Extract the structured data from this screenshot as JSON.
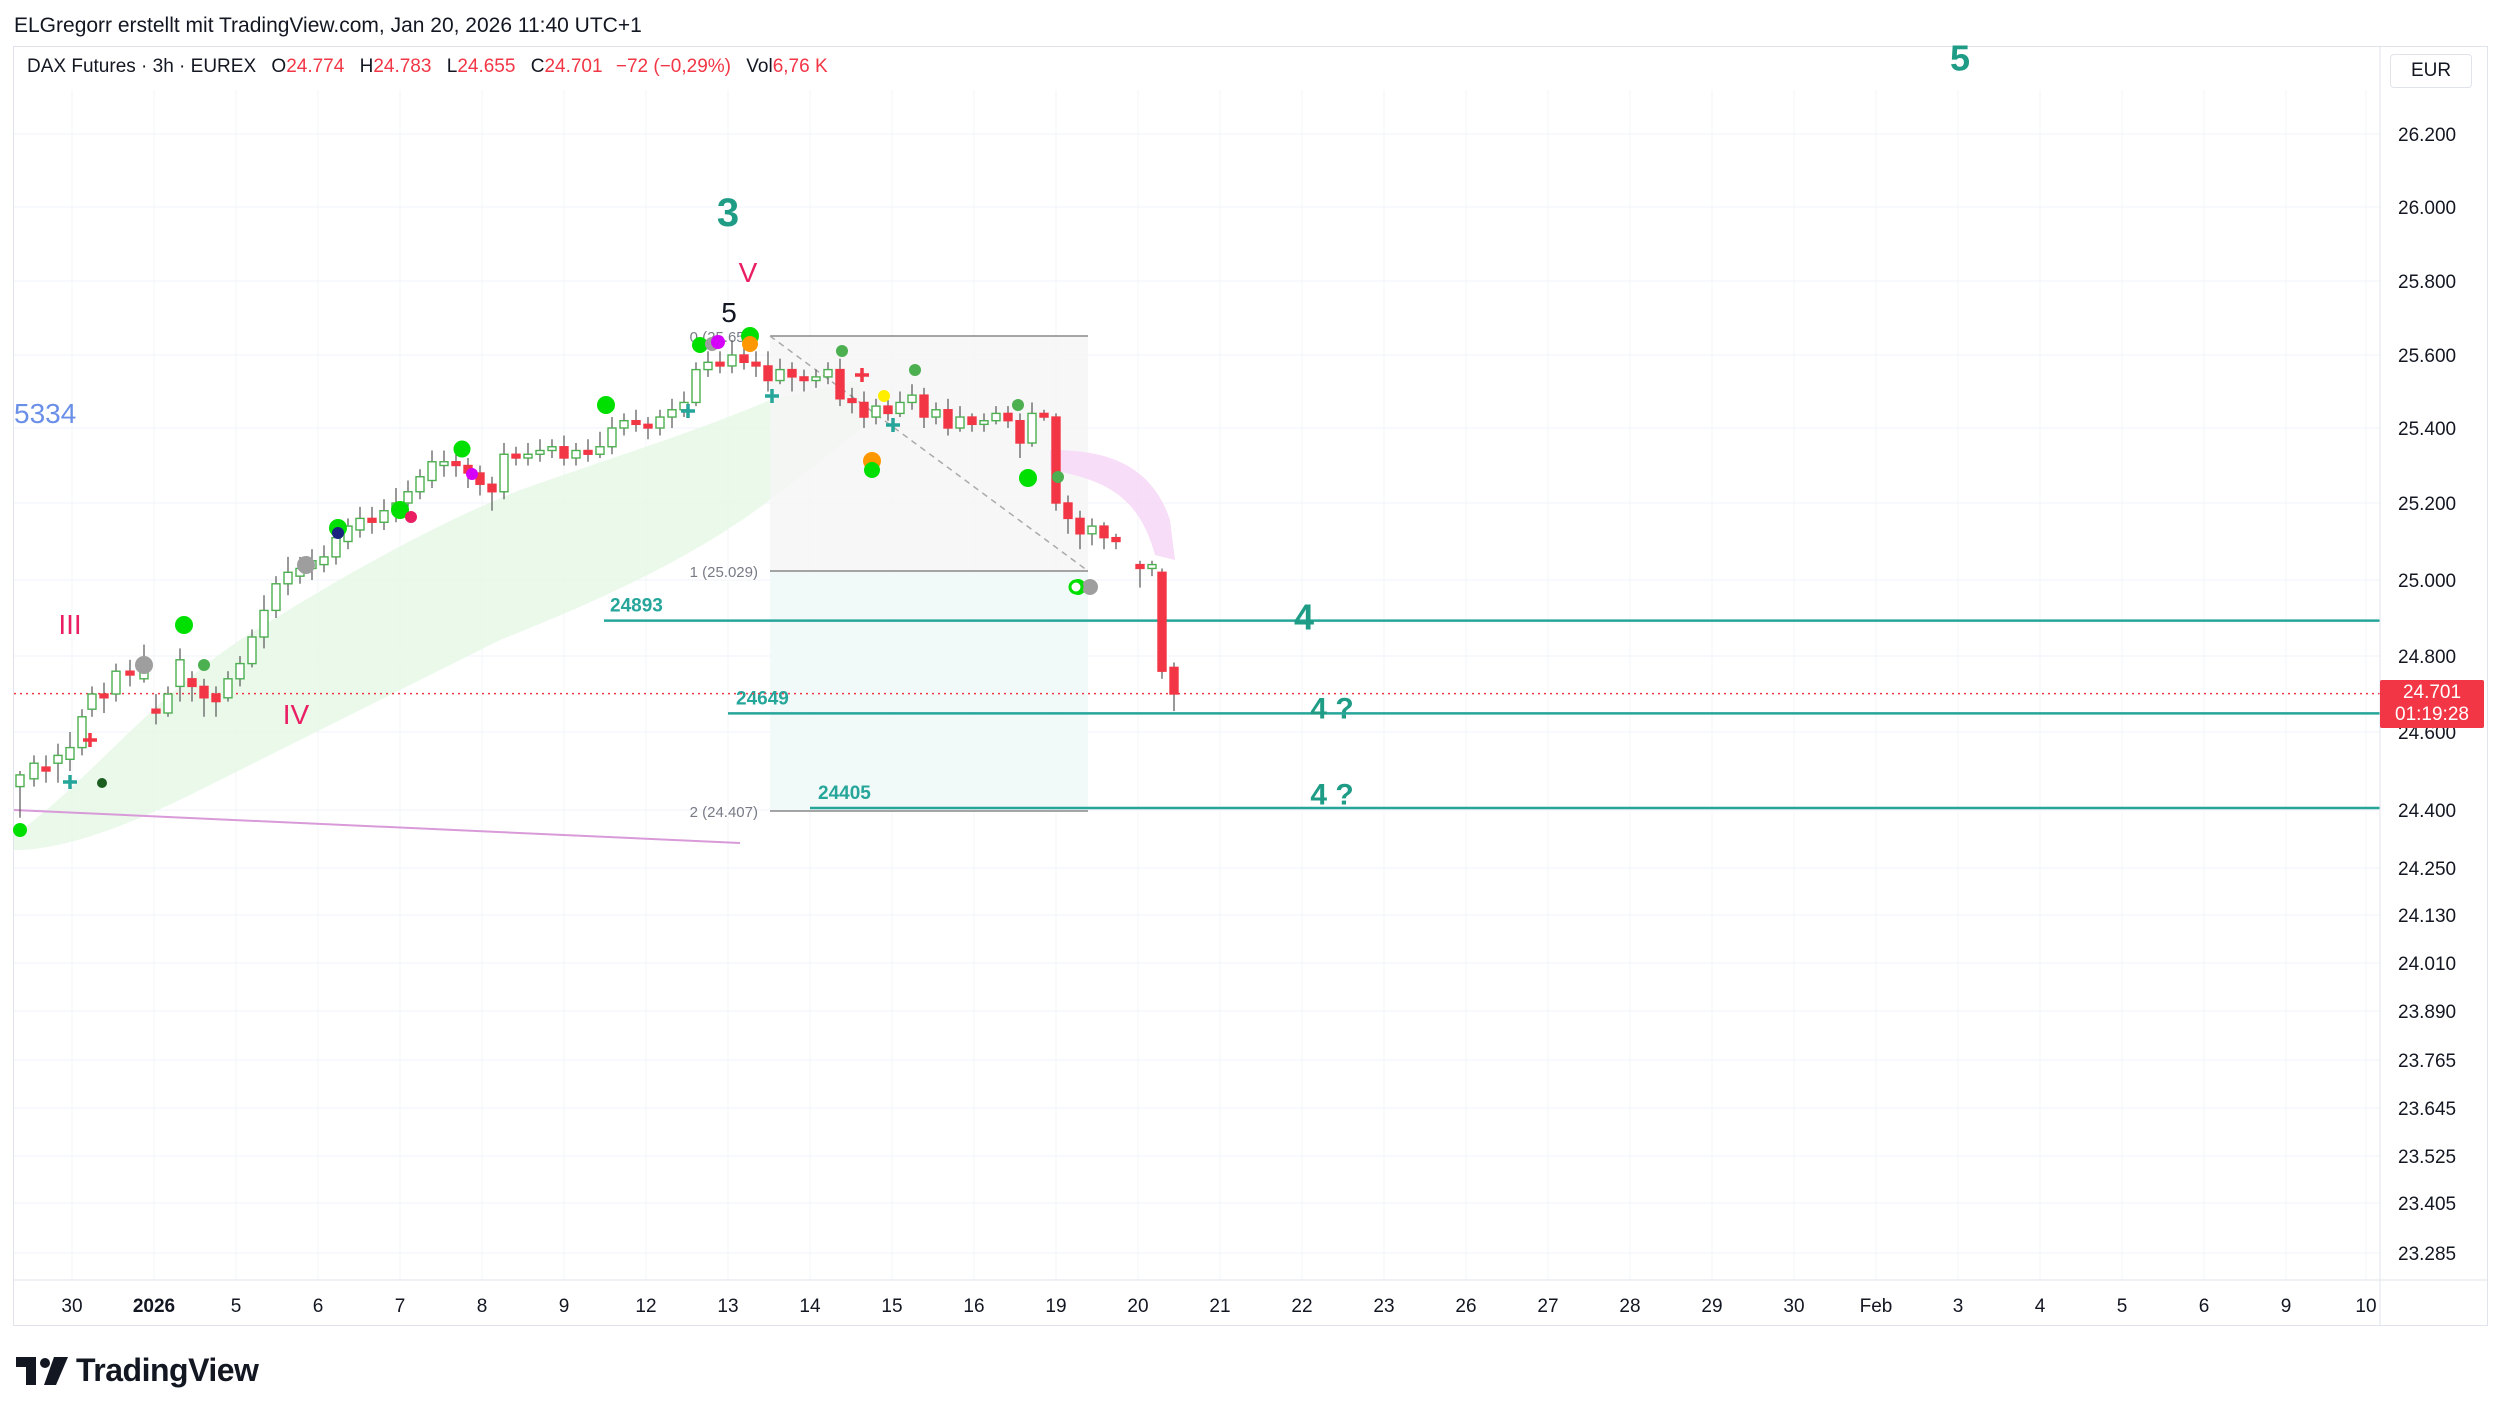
{
  "header": {
    "author_line": "ELGregorr erstellt mit TradingView.com, Jan 20, 2026 11:40 UTC+1",
    "currency": "EUR"
  },
  "legend": {
    "symbol": "DAX Futures · 3h · EUREX",
    "open_label": "O",
    "open": "24.774",
    "high_label": "H",
    "high": "24.783",
    "low_label": "L",
    "low": "24.655",
    "close_label": "C",
    "close": "24.701",
    "change": "−72 (−0,29%)",
    "vol_label": "Vol",
    "vol": "6,76 K"
  },
  "price_tag": {
    "price": "24.701",
    "countdown": "01:19:28"
  },
  "footer": {
    "brand": "TradingView"
  },
  "colors": {
    "up": "#4caf50",
    "down": "#f23645",
    "teal": "#26a69a",
    "wave_text": "#1e9c85",
    "roman": "#e91e63",
    "band": "#e8f8e8",
    "pink_band": "#f6d9f6",
    "blue_label": "#6a8fe8"
  },
  "chart_data": {
    "type": "candlestick",
    "y_axis": {
      "ticks": [
        26200,
        26000,
        25800,
        25600,
        25400,
        25200,
        25000,
        24800,
        24600,
        24400,
        24250,
        24130,
        24010,
        23890,
        23765,
        23645,
        23525,
        23405,
        23285
      ],
      "tick_labels": [
        "26.200",
        "26.000",
        "25.800",
        "25.600",
        "25.400",
        "25.200",
        "25.000",
        "24.800",
        "24.600",
        "24.400",
        "24.250",
        "24.130",
        "24.010",
        "23.890",
        "23.765",
        "23.645",
        "23.525",
        "23.405",
        "23.285"
      ]
    },
    "x_axis": {
      "tick_labels": [
        "30",
        "2026",
        "5",
        "6",
        "7",
        "8",
        "9",
        "12",
        "13",
        "14",
        "15",
        "16",
        "19",
        "20",
        "21",
        "22",
        "23",
        "26",
        "27",
        "28",
        "29",
        "30",
        "Feb",
        "3",
        "4",
        "5",
        "6",
        "9",
        "10"
      ],
      "bold_labels": [
        "2026"
      ]
    },
    "last_price": 24701,
    "horizontal_levels": [
      {
        "label": "24893",
        "value": 24893
      },
      {
        "label": "24649",
        "value": 24649
      },
      {
        "label": "24405",
        "value": 24405
      }
    ],
    "fib_tool": [
      {
        "label": "0 (25.655)",
        "value": 25655
      },
      {
        "label": "1 (25.029)",
        "value": 25029
      },
      {
        "label": "2 (24.407)",
        "value": 24407
      }
    ],
    "wave_labels": [
      {
        "text": "3",
        "style": "teal"
      },
      {
        "text": "5",
        "style": "teal"
      },
      {
        "text": "4",
        "style": "teal"
      },
      {
        "text": "4 ?",
        "style": "teal"
      },
      {
        "text": "4 ?",
        "style": "teal"
      },
      {
        "text": "5",
        "style": "black"
      },
      {
        "text": "V",
        "style": "roman"
      },
      {
        "text": "III",
        "style": "roman"
      },
      {
        "text": "IV",
        "style": "roman"
      },
      {
        "text": "5334",
        "style": "blue"
      }
    ]
  }
}
